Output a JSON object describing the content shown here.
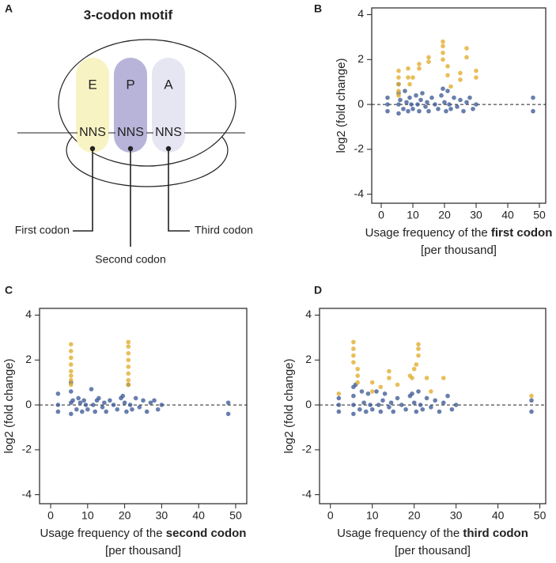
{
  "diagram": {
    "panel": "A",
    "title": "3-codon motif",
    "sites": [
      "E",
      "P",
      "A"
    ],
    "codons": [
      "NNS",
      "NNS",
      "NNS"
    ],
    "callouts": [
      "First codon",
      "Second codon",
      "Third codon"
    ]
  },
  "chart_data": [
    {
      "type": "scatter",
      "panel": "B",
      "ylabel": "log2 (fold change)",
      "xlabel": [
        "Usage frequency of the ",
        "first codon"
      ],
      "xlabel_unit": "[per thousand]",
      "xlim": [
        -3,
        52
      ],
      "ylim": [
        -4.4,
        4.3
      ],
      "xticks": [
        0,
        10,
        20,
        30,
        40,
        50
      ],
      "yticks": [
        -4,
        -2,
        0,
        2,
        4
      ],
      "zero_line": true,
      "series": [
        {
          "color": "#3d5a96",
          "x": [
            2,
            2,
            2,
            5.5,
            5.5,
            5.5,
            5.5,
            6,
            7,
            7.5,
            8,
            8.5,
            9,
            9.5,
            10,
            11,
            11.5,
            12,
            12.5,
            13,
            14,
            14.5,
            15,
            16,
            17,
            18,
            19,
            19.5,
            20,
            20.5,
            21,
            21.5,
            22,
            23,
            24,
            25,
            26,
            27,
            28,
            29,
            30,
            48,
            48
          ],
          "y": [
            0.3,
            0,
            -0.3,
            0.9,
            0.5,
            0,
            -0.4,
            0.2,
            -0.2,
            0.6,
            0.1,
            -0.3,
            0.3,
            0,
            -0.2,
            0.4,
            0,
            -0.3,
            0.2,
            0.5,
            -0.1,
            0.1,
            -0.3,
            0.3,
            0,
            -0.2,
            0.4,
            0.7,
            0.1,
            -0.3,
            0.6,
            0,
            -0.2,
            0.3,
            -0.1,
            0.2,
            -0.3,
            0.1,
            0.3,
            -0.2,
            0,
            0.3,
            -0.3
          ]
        },
        {
          "color": "#e2ac2c",
          "x": [
            5.5,
            5.5,
            5.5,
            5.5,
            5.5,
            8.5,
            8.5,
            9,
            10,
            12,
            12,
            15,
            15,
            19.5,
            19.5,
            19.5,
            19.5,
            21,
            21,
            22,
            25,
            25,
            27,
            27,
            30,
            30
          ],
          "y": [
            1.5,
            1.2,
            0.9,
            0.6,
            0.4,
            1.6,
            1.2,
            0.9,
            1.2,
            1.8,
            1.6,
            2.1,
            1.9,
            2.8,
            2.6,
            2.3,
            2.0,
            1.7,
            1.3,
            0.8,
            1.4,
            1.1,
            2.5,
            2.1,
            1.5,
            1.2
          ]
        }
      ]
    },
    {
      "type": "scatter",
      "panel": "C",
      "ylabel": "log2 (fold change)",
      "xlabel": [
        "Usage frequency of the ",
        "second codon"
      ],
      "xlabel_unit": "[per thousand]",
      "xlim": [
        -3,
        53
      ],
      "ylim": [
        -4.4,
        4.3
      ],
      "xticks": [
        0,
        10,
        20,
        30,
        40,
        50
      ],
      "yticks": [
        -4,
        -2,
        0,
        2,
        4
      ],
      "zero_line": true,
      "series": [
        {
          "color": "#3d5a96",
          "x": [
            2,
            2,
            2,
            5.5,
            5.5,
            5.5,
            5.5,
            6,
            7,
            7.5,
            8,
            8.5,
            9,
            9.5,
            10,
            11,
            11.5,
            12,
            12.5,
            13,
            14,
            14.5,
            15,
            16,
            17,
            18,
            19,
            19.5,
            20,
            20.5,
            21,
            21.5,
            22,
            23,
            24,
            25,
            26,
            27,
            28,
            29,
            30,
            48,
            48
          ],
          "y": [
            0.5,
            0,
            -0.3,
            1.0,
            0.6,
            0.1,
            -0.4,
            0.2,
            -0.2,
            0.3,
            0.1,
            -0.3,
            0.2,
            0,
            -0.2,
            0.7,
            0,
            -0.3,
            0.2,
            0.3,
            -0.1,
            0.1,
            -0.3,
            0.2,
            0,
            -0.2,
            0.3,
            0.4,
            0.1,
            -0.3,
            0.9,
            0,
            -0.2,
            0.3,
            -0.1,
            0.2,
            -0.3,
            0.1,
            0.2,
            -0.2,
            0,
            0.1,
            -0.4
          ]
        },
        {
          "color": "#e2ac2c",
          "x": [
            5.5,
            5.5,
            5.5,
            5.5,
            5.5,
            5.5,
            5.5,
            5.5,
            21,
            21,
            21,
            21,
            21,
            21,
            21,
            21
          ],
          "y": [
            2.7,
            2.4,
            2.1,
            1.8,
            1.5,
            1.3,
            1.1,
            0.9,
            2.8,
            2.6,
            2.3,
            2.0,
            1.7,
            1.4,
            1.1,
            0.9
          ]
        }
      ]
    },
    {
      "type": "scatter",
      "panel": "D",
      "ylabel": "log2 (fold change)",
      "xlabel": [
        "Usage frequency of the ",
        "third codon"
      ],
      "xlabel_unit": "[per thousand]",
      "xlim": [
        -2.6,
        51.4
      ],
      "ylim": [
        -4.4,
        4.3
      ],
      "xticks": [
        0,
        10,
        20,
        30,
        40,
        50
      ],
      "yticks": [
        -4,
        -2,
        0,
        2,
        4
      ],
      "zero_line": true,
      "series": [
        {
          "color": "#3d5a96",
          "x": [
            2,
            2,
            2,
            5.5,
            5.5,
            5.5,
            5.5,
            6,
            7,
            7.5,
            8,
            8.5,
            9,
            9.5,
            10,
            11,
            11.5,
            12,
            12.5,
            13,
            14,
            14.5,
            15,
            16,
            17,
            18,
            19,
            19.5,
            20,
            20.5,
            21,
            21.5,
            22,
            23,
            24,
            25,
            26,
            27,
            28,
            29,
            30,
            48,
            48
          ],
          "y": [
            0.3,
            0,
            -0.3,
            0.8,
            0.4,
            0,
            -0.4,
            0.9,
            -0.2,
            0.6,
            0.1,
            -0.3,
            0.5,
            0,
            -0.2,
            0.6,
            0,
            -0.3,
            0.2,
            0.5,
            -0.1,
            0.1,
            -0.3,
            0.3,
            0,
            -0.2,
            0.4,
            0.5,
            0.1,
            -0.3,
            0.6,
            0,
            -0.2,
            0.3,
            -0.1,
            0.2,
            -0.3,
            0.1,
            0.4,
            -0.2,
            0,
            0.2,
            -0.3
          ]
        },
        {
          "color": "#e2ac2c",
          "x": [
            2,
            5.5,
            5.5,
            5.5,
            5.5,
            6.5,
            6.5,
            6.5,
            10,
            10,
            12,
            14,
            14,
            16,
            19,
            19.5,
            20,
            20.5,
            21,
            21,
            21,
            23,
            24,
            27,
            48
          ],
          "y": [
            0.5,
            2.8,
            2.5,
            2.2,
            1.9,
            1.6,
            1.3,
            1.0,
            1.0,
            0.6,
            0.8,
            1.5,
            1.2,
            0.9,
            1.3,
            1.2,
            1.6,
            1.8,
            2.7,
            2.5,
            2.2,
            1.2,
            0.6,
            1.2,
            0.4
          ]
        }
      ]
    }
  ]
}
